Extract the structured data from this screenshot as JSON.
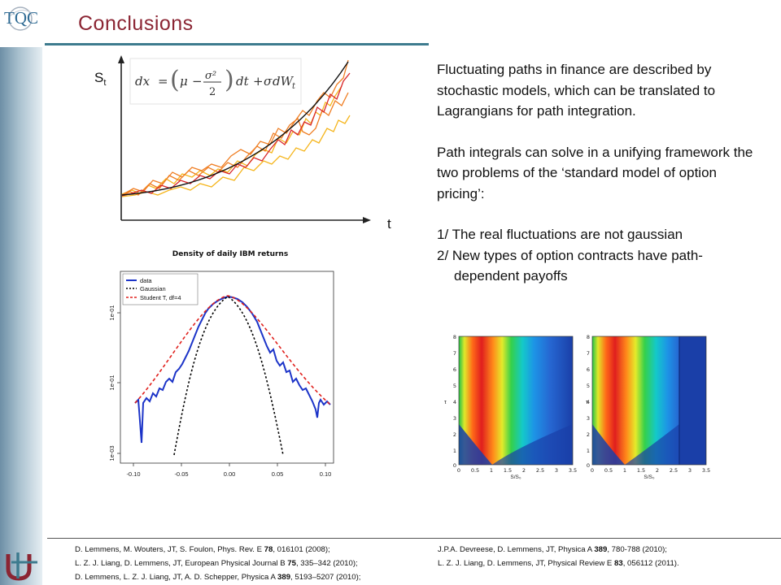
{
  "title": "Conclusions",
  "logo_top": {
    "text": "TQC",
    "icon": "tqc-logo"
  },
  "logo_bottom": {
    "icon": "university-antwerp-logo"
  },
  "plot_paths": {
    "y_label": "S",
    "y_label_sub": "t",
    "x_label": "t",
    "equation": {
      "lhs": "dx",
      "mu": "μ",
      "sigma_sq": "σ²",
      "two": "2",
      "dt": "dt",
      "plus": "+",
      "sigma": "σ",
      "dW": "dW",
      "W_sub": "t"
    },
    "colors": {
      "smooth": "#111111",
      "red": "#d8262b",
      "orange": "#ef7d22",
      "yellow": "#f5b51c"
    }
  },
  "plot_density": {
    "title": "Density of daily IBM returns",
    "legend": [
      "data",
      "Gaussian",
      "Student T, df=4"
    ],
    "x_ticks": [
      "-0.10",
      "-0.05",
      "0.00",
      "0.05",
      "0.10"
    ],
    "y_ticks": [
      "1e-01",
      "1e-01",
      "1e-03"
    ],
    "colors": {
      "data": "#1c34c8",
      "gaussian": "#000000",
      "student": "#e0211d"
    }
  },
  "heatmaps": {
    "y_ticks": [
      "8",
      "7",
      "6",
      "5",
      "4",
      "3",
      "2",
      "1",
      "0"
    ],
    "x_ticks": [
      "0",
      "0.5",
      "1",
      "1.5",
      "2",
      "2.5",
      "3",
      "3.5"
    ],
    "y_axis_label": "τ",
    "x_axis_label": "S/S₀"
  },
  "text": {
    "p1": "Fluctuating paths in finance are described by stochastic models, which can be translated to Lagrangians for path integration.",
    "p2": "Path integrals can solve in a unifying framework the two problems of the ‘standard model of option pricing’:",
    "p3": "1/ The real fluctuations are not gaussian",
    "p4": "2/ New types of option contracts have path-",
    "p4b": "dependent payoffs"
  },
  "references": {
    "left": [
      {
        "pre": "D. Lemmens, M. Wouters, JT, S. Foulon, Phys. Rev. E ",
        "vol": "78",
        "post": ", 016101 (2008);"
      },
      {
        "pre": "L. Z. J. Liang, D. Lemmens, JT, European Physical Journal B ",
        "vol": "75",
        "post": ",  335–342 (2010);"
      },
      {
        "pre": "D. Lemmens, L. Z. J. Liang, JT, A. D. Schepper, Physica A ",
        "vol": "389",
        "post": ", 5193–5207 (2010);"
      }
    ],
    "right": [
      {
        "pre": "J.P.A. Devreese, D. Lemmens, JT, Physica A ",
        "vol": "389",
        "post": ", 780-788 (2010);"
      },
      {
        "pre": "L. Z. J. Liang, D. Lemmens, JT, Physical Review E ",
        "vol": "83",
        "post": ", 056112 (2011)."
      }
    ]
  }
}
